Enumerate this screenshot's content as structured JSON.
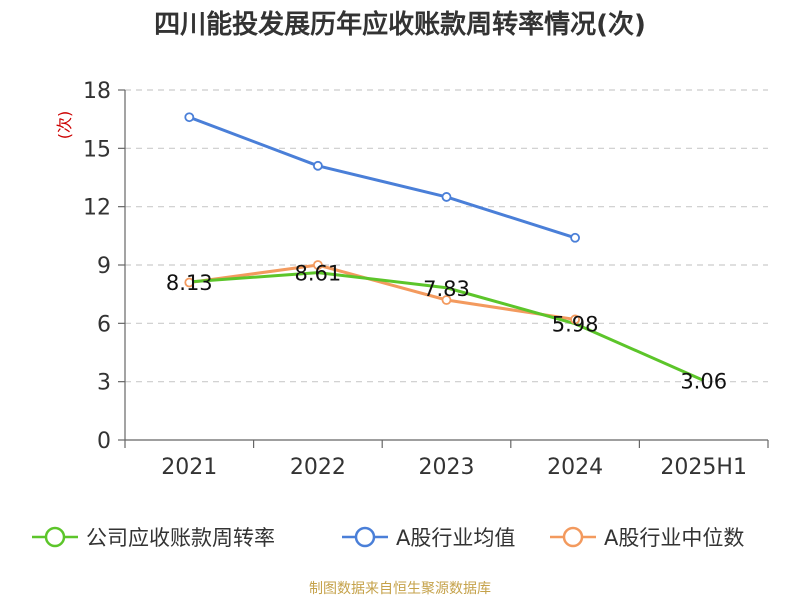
{
  "chart_data": {
    "type": "line",
    "title": "四川能投发展历年应收账款周转率情况(次)",
    "ylabel": "(次)",
    "xlabel": "",
    "categories": [
      "2021",
      "2022",
      "2023",
      "2024",
      "2025H1"
    ],
    "ylim": [
      0,
      18
    ],
    "yticks": [
      0,
      3,
      6,
      9,
      12,
      15,
      18
    ],
    "grid": true,
    "legend_position": "bottom",
    "series": [
      {
        "name": "公司应收账款周转率",
        "values": [
          8.13,
          8.61,
          7.83,
          5.98,
          3.06
        ],
        "color": "#5cc52a",
        "labels": [
          "8.13",
          "8.61",
          "7.83",
          "5.98",
          "3.06"
        ]
      },
      {
        "name": "A股行业均值",
        "values": [
          16.6,
          14.1,
          12.5,
          10.4,
          null
        ],
        "color": "#4a7fd8"
      },
      {
        "name": "A股行业中位数",
        "values": [
          8.1,
          9.0,
          7.2,
          6.2,
          null
        ],
        "color": "#f39a5e"
      }
    ]
  },
  "source": "制图数据来自恒生聚源数据库"
}
